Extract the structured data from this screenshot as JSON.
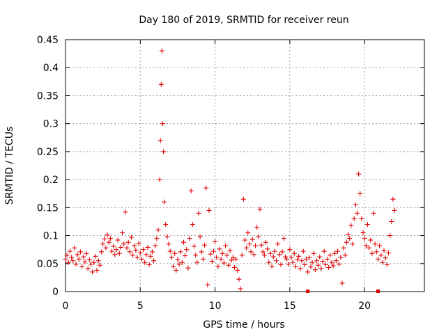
{
  "chart_data": {
    "type": "scatter",
    "title": "Day 180 of 2019, SRMTID for receiver reun",
    "xlabel": "GPS time / hours",
    "ylabel": "SRMTID / TECUs",
    "xlim": [
      0,
      24
    ],
    "ylim": [
      0,
      0.45
    ],
    "x_ticks": [
      0,
      5,
      10,
      15,
      20
    ],
    "y_ticks": [
      0,
      0.05,
      0.1,
      0.15,
      0.2,
      0.25,
      0.3,
      0.35,
      0.4,
      0.45
    ],
    "x_tick_labels": [
      "0",
      "5",
      "10",
      "15",
      "20"
    ],
    "y_tick_labels": [
      "0",
      "0.05",
      "0.1",
      "0.15",
      "0.2",
      "0.25",
      "0.3",
      "0.35",
      "0.4",
      "0.45"
    ],
    "grid": true,
    "marker": "plus",
    "color": "#e00000",
    "series": [
      {
        "name": "SRMTID",
        "points": [
          [
            0.0,
            0.058
          ],
          [
            0.1,
            0.065
          ],
          [
            0.2,
            0.052
          ],
          [
            0.3,
            0.072
          ],
          [
            0.4,
            0.061
          ],
          [
            0.5,
            0.055
          ],
          [
            0.6,
            0.078
          ],
          [
            0.7,
            0.049
          ],
          [
            0.8,
            0.066
          ],
          [
            0.9,
            0.058
          ],
          [
            1.0,
            0.071
          ],
          [
            1.1,
            0.045
          ],
          [
            1.2,
            0.062
          ],
          [
            1.3,
            0.053
          ],
          [
            1.4,
            0.068
          ],
          [
            1.5,
            0.041
          ],
          [
            1.6,
            0.057
          ],
          [
            1.7,
            0.049
          ],
          [
            1.8,
            0.035
          ],
          [
            1.9,
            0.052
          ],
          [
            2.0,
            0.063
          ],
          [
            2.1,
            0.038
          ],
          [
            2.2,
            0.055
          ],
          [
            2.3,
            0.047
          ],
          [
            2.4,
            0.071
          ],
          [
            2.5,
            0.085
          ],
          [
            2.6,
            0.094
          ],
          [
            2.7,
            0.078
          ],
          [
            2.8,
            0.101
          ],
          [
            2.9,
            0.088
          ],
          [
            3.0,
            0.095
          ],
          [
            3.1,
            0.072
          ],
          [
            3.2,
            0.081
          ],
          [
            3.3,
            0.066
          ],
          [
            3.4,
            0.075
          ],
          [
            3.5,
            0.092
          ],
          [
            3.6,
            0.068
          ],
          [
            3.7,
            0.079
          ],
          [
            3.8,
            0.105
          ],
          [
            3.9,
            0.085
          ],
          [
            4.0,
            0.142
          ],
          [
            4.1,
            0.078
          ],
          [
            4.2,
            0.088
          ],
          [
            4.3,
            0.071
          ],
          [
            4.4,
            0.097
          ],
          [
            4.5,
            0.065
          ],
          [
            4.6,
            0.082
          ],
          [
            4.7,
            0.074
          ],
          [
            4.8,
            0.061
          ],
          [
            4.9,
            0.086
          ],
          [
            5.0,
            0.069
          ],
          [
            5.1,
            0.058
          ],
          [
            5.2,
            0.075
          ],
          [
            5.3,
            0.052
          ],
          [
            5.4,
            0.066
          ],
          [
            5.5,
            0.079
          ],
          [
            5.6,
            0.048
          ],
          [
            5.7,
            0.063
          ],
          [
            5.8,
            0.071
          ],
          [
            5.9,
            0.055
          ],
          [
            6.0,
            0.082
          ],
          [
            6.1,
            0.095
          ],
          [
            6.2,
            0.11
          ],
          [
            6.3,
            0.2
          ],
          [
            6.35,
            0.27
          ],
          [
            6.4,
            0.37
          ],
          [
            6.45,
            0.43
          ],
          [
            6.5,
            0.3
          ],
          [
            6.55,
            0.25
          ],
          [
            6.6,
            0.16
          ],
          [
            6.7,
            0.12
          ],
          [
            6.8,
            0.098
          ],
          [
            6.9,
            0.085
          ],
          [
            7.0,
            0.072
          ],
          [
            7.1,
            0.061
          ],
          [
            7.2,
            0.045
          ],
          [
            7.3,
            0.068
          ],
          [
            7.4,
            0.038
          ],
          [
            7.5,
            0.057
          ],
          [
            7.6,
            0.049
          ],
          [
            7.7,
            0.071
          ],
          [
            7.8,
            0.052
          ],
          [
            7.9,
            0.088
          ],
          [
            8.0,
            0.064
          ],
          [
            8.1,
            0.075
          ],
          [
            8.2,
            0.042
          ],
          [
            8.3,
            0.095
          ],
          [
            8.4,
            0.18
          ],
          [
            8.5,
            0.12
          ],
          [
            8.6,
            0.081
          ],
          [
            8.7,
            0.065
          ],
          [
            8.8,
            0.052
          ],
          [
            8.9,
            0.14
          ],
          [
            9.0,
            0.098
          ],
          [
            9.1,
            0.071
          ],
          [
            9.2,
            0.058
          ],
          [
            9.3,
            0.083
          ],
          [
            9.4,
            0.185
          ],
          [
            9.5,
            0.012
          ],
          [
            9.6,
            0.145
          ],
          [
            9.7,
            0.067
          ],
          [
            9.8,
            0.054
          ],
          [
            9.9,
            0.072
          ],
          [
            10.0,
            0.089
          ],
          [
            10.1,
            0.061
          ],
          [
            10.2,
            0.045
          ],
          [
            10.3,
            0.076
          ],
          [
            10.4,
            0.058
          ],
          [
            10.5,
            0.068
          ],
          [
            10.6,
            0.051
          ],
          [
            10.7,
            0.082
          ],
          [
            10.8,
            0.065
          ],
          [
            10.9,
            0.047
          ],
          [
            11.0,
            0.073
          ],
          [
            11.1,
            0.056
          ],
          [
            11.2,
            0.061
          ],
          [
            11.3,
            0.043
          ],
          [
            11.4,
            0.058
          ],
          [
            11.5,
            0.038
          ],
          [
            11.6,
            0.022
          ],
          [
            11.7,
            0.005
          ],
          [
            11.8,
            0.065
          ],
          [
            11.9,
            0.165
          ],
          [
            12.0,
            0.092
          ],
          [
            12.1,
            0.078
          ],
          [
            12.2,
            0.105
          ],
          [
            12.3,
            0.085
          ],
          [
            12.4,
            0.071
          ],
          [
            12.5,
            0.093
          ],
          [
            12.6,
            0.066
          ],
          [
            12.7,
            0.082
          ],
          [
            12.8,
            0.115
          ],
          [
            12.9,
            0.098
          ],
          [
            13.0,
            0.147
          ],
          [
            13.1,
            0.083
          ],
          [
            13.2,
            0.071
          ],
          [
            13.3,
            0.065
          ],
          [
            13.4,
            0.088
          ],
          [
            13.5,
            0.076
          ],
          [
            13.6,
            0.052
          ],
          [
            13.7,
            0.068
          ],
          [
            13.8,
            0.045
          ],
          [
            13.9,
            0.062
          ],
          [
            14.0,
            0.072
          ],
          [
            14.1,
            0.055
          ],
          [
            14.2,
            0.085
          ],
          [
            14.3,
            0.066
          ],
          [
            14.4,
            0.048
          ],
          [
            14.5,
            0.071
          ],
          [
            14.6,
            0.095
          ],
          [
            14.7,
            0.062
          ],
          [
            14.8,
            0.058
          ],
          [
            14.9,
            0.049
          ],
          [
            15.0,
            0.075
          ],
          [
            15.1,
            0.061
          ],
          [
            15.2,
            0.052
          ],
          [
            15.3,
            0.068
          ],
          [
            15.4,
            0.045
          ],
          [
            15.5,
            0.057
          ],
          [
            15.6,
            0.063
          ],
          [
            15.7,
            0.041
          ],
          [
            15.8,
            0.055
          ],
          [
            15.9,
            0.072
          ],
          [
            16.0,
            0.048
          ],
          [
            16.1,
            0.058
          ],
          [
            16.2,
            0.035
          ],
          [
            16.3,
            0.061
          ],
          [
            16.4,
            0.044
          ],
          [
            16.5,
            0.052
          ],
          [
            16.6,
            0.068
          ],
          [
            16.7,
            0.039
          ],
          [
            16.8,
            0.055
          ],
          [
            16.9,
            0.047
          ],
          [
            17.0,
            0.062
          ],
          [
            17.1,
            0.041
          ],
          [
            17.2,
            0.054
          ],
          [
            17.3,
            0.072
          ],
          [
            17.4,
            0.048
          ],
          [
            17.5,
            0.058
          ],
          [
            17.6,
            0.043
          ],
          [
            17.7,
            0.065
          ],
          [
            17.8,
            0.052
          ],
          [
            17.9,
            0.046
          ],
          [
            18.0,
            0.068
          ],
          [
            18.1,
            0.055
          ],
          [
            18.2,
            0.072
          ],
          [
            18.3,
            0.049
          ],
          [
            18.4,
            0.061
          ],
          [
            18.5,
            0.015
          ],
          [
            18.6,
            0.078
          ],
          [
            18.7,
            0.065
          ],
          [
            18.8,
            0.088
          ],
          [
            18.9,
            0.102
          ],
          [
            19.0,
            0.095
          ],
          [
            19.1,
            0.118
          ],
          [
            19.2,
            0.085
          ],
          [
            19.3,
            0.13
          ],
          [
            19.4,
            0.155
          ],
          [
            19.5,
            0.14
          ],
          [
            19.6,
            0.21
          ],
          [
            19.7,
            0.175
          ],
          [
            19.8,
            0.13
          ],
          [
            19.9,
            0.105
          ],
          [
            20.0,
            0.095
          ],
          [
            20.1,
            0.082
          ],
          [
            20.2,
            0.12
          ],
          [
            20.3,
            0.078
          ],
          [
            20.4,
            0.092
          ],
          [
            20.5,
            0.068
          ],
          [
            20.6,
            0.14
          ],
          [
            20.7,
            0.085
          ],
          [
            20.8,
            0.071
          ],
          [
            20.9,
            0.058
          ],
          [
            21.0,
            0.082
          ],
          [
            21.1,
            0.065
          ],
          [
            21.2,
            0.052
          ],
          [
            21.3,
            0.073
          ],
          [
            21.4,
            0.06
          ],
          [
            21.5,
            0.048
          ],
          [
            21.6,
            0.069
          ],
          [
            21.7,
            0.1
          ],
          [
            21.8,
            0.125
          ],
          [
            21.9,
            0.165
          ],
          [
            22.0,
            0.145
          ]
        ]
      }
    ],
    "zero_markers": [
      [
        16.2,
        0.0
      ],
      [
        20.9,
        0.0
      ]
    ]
  }
}
